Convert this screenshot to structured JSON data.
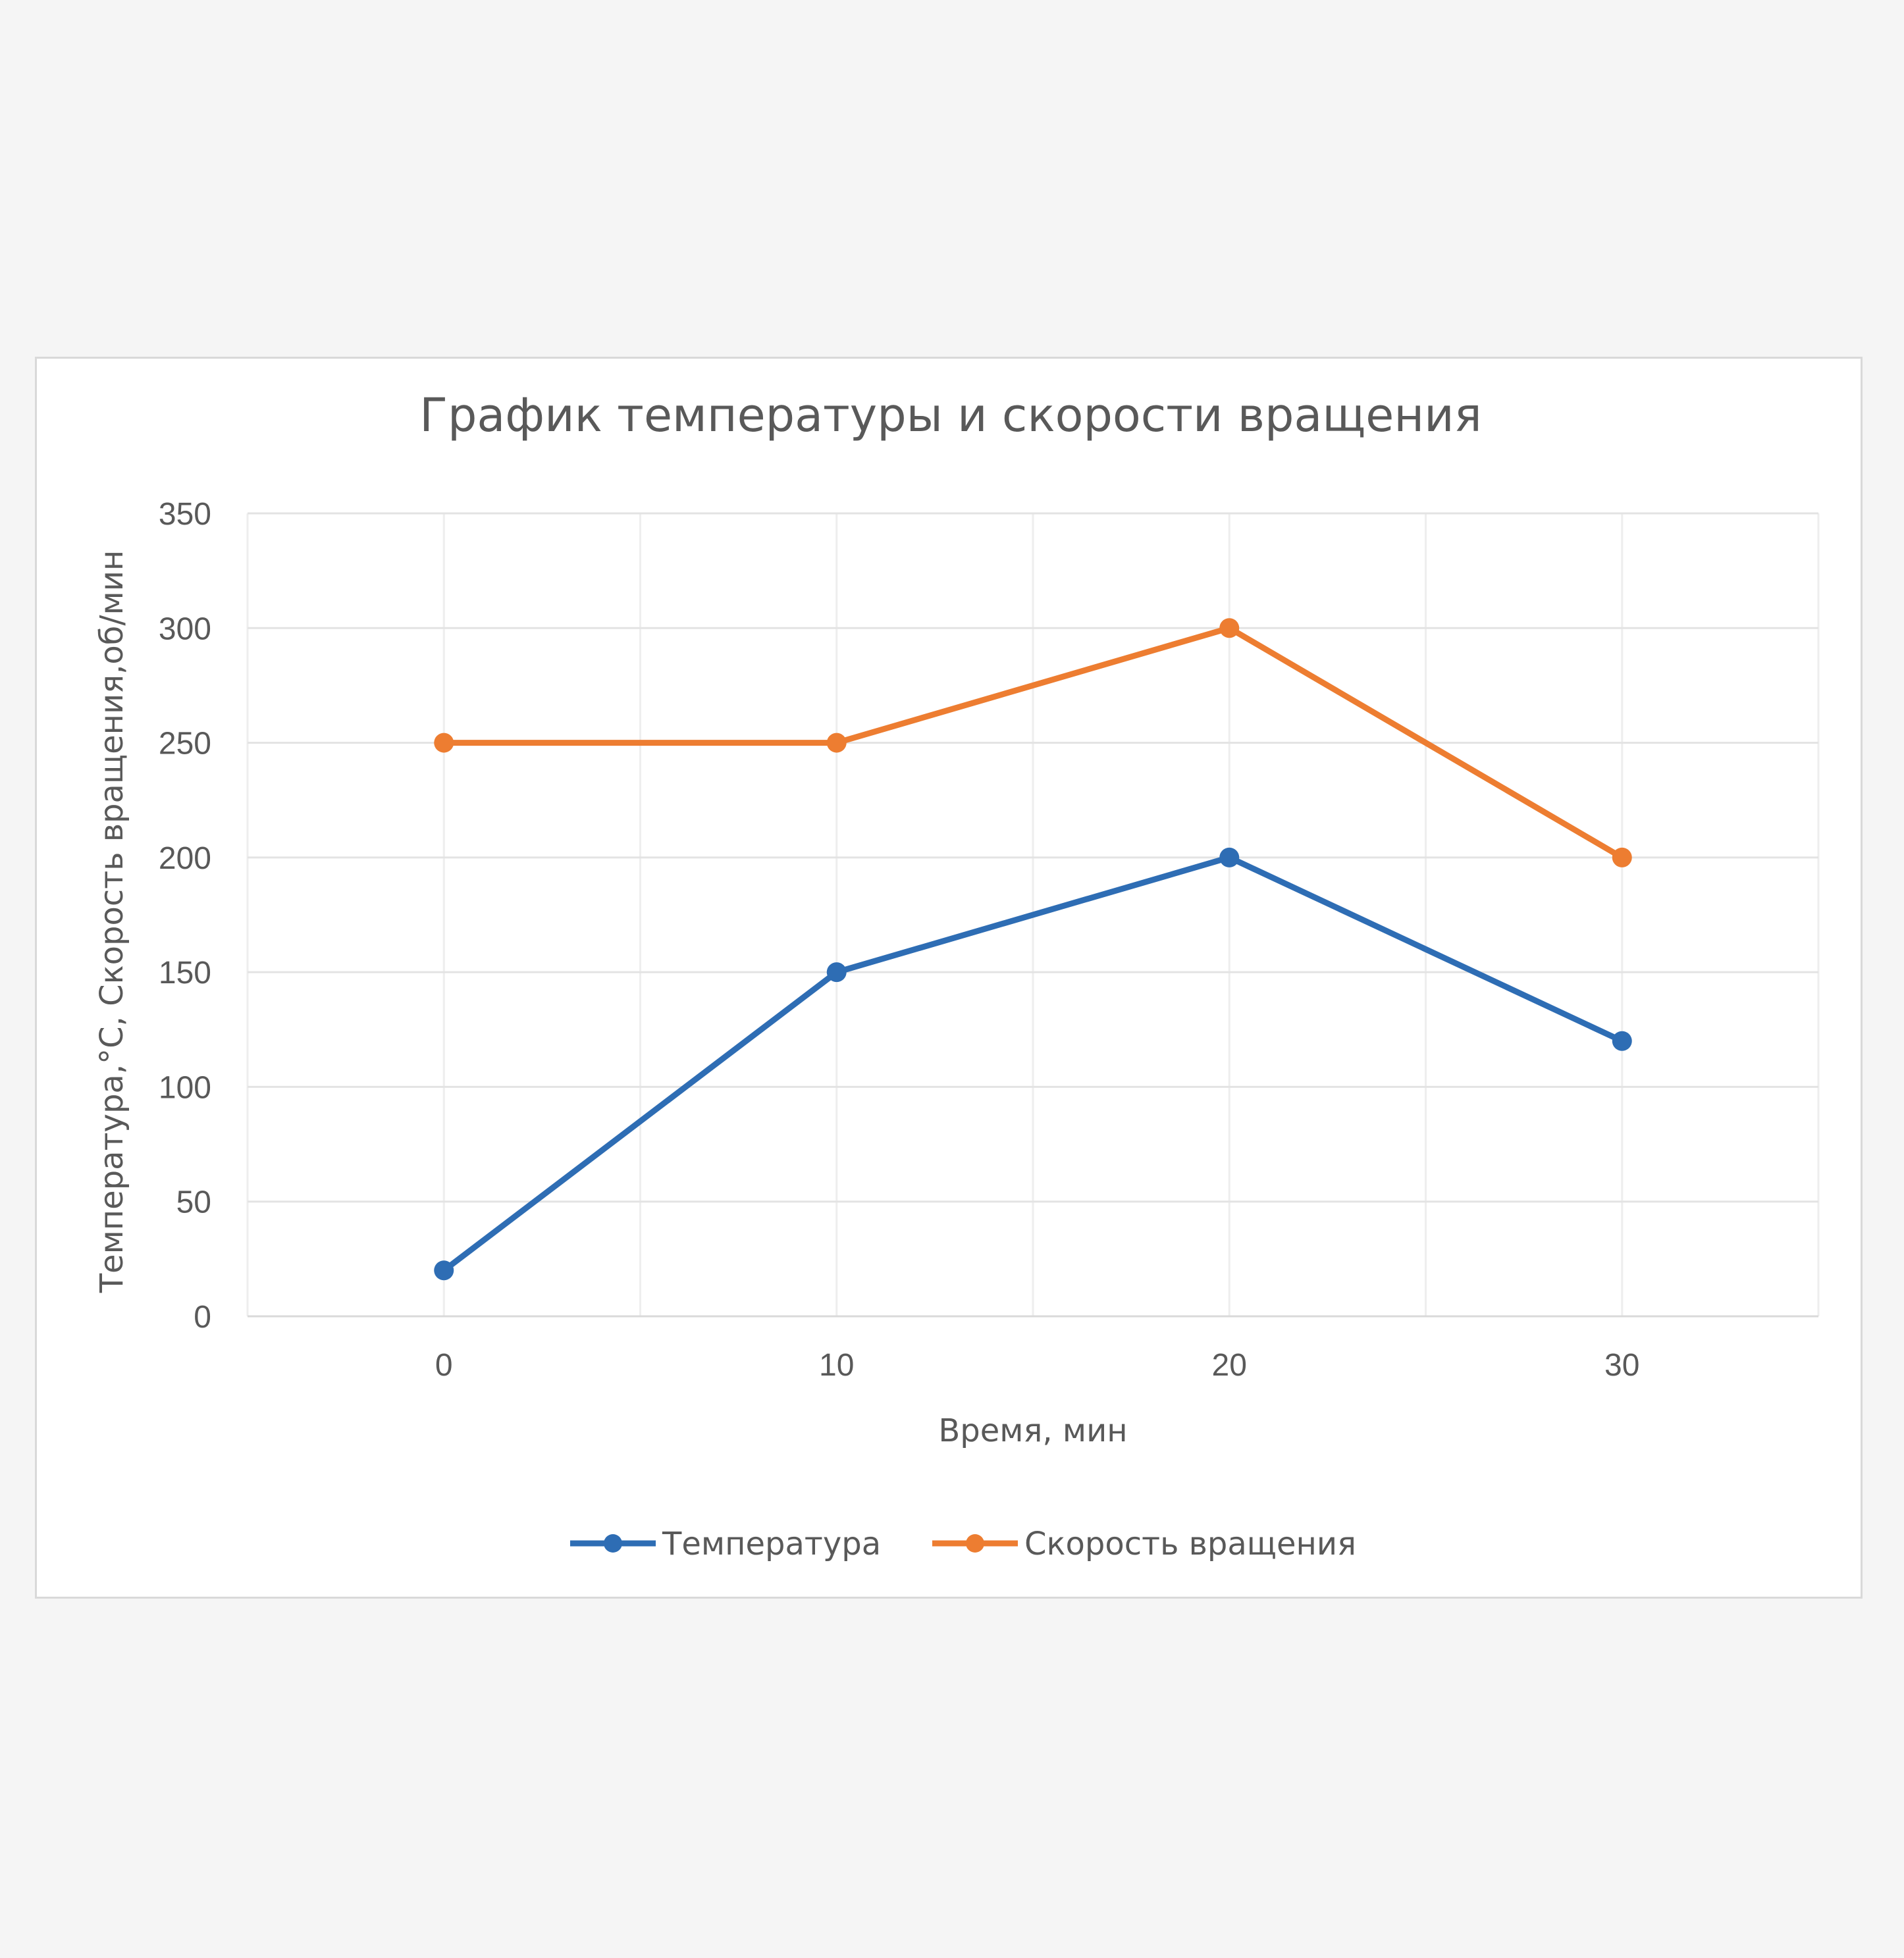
{
  "chart_data": {
    "type": "line",
    "title": "График температуры и скорости вращения",
    "xlabel": "Время,  мин",
    "ylabel": "Температура,°С,  Скорость вращения,об/мин",
    "x": [
      0,
      10,
      20,
      30
    ],
    "x_ticks": [
      "0",
      "10",
      "20",
      "30"
    ],
    "xlim": [
      -5,
      35
    ],
    "ylim": [
      0,
      350
    ],
    "y_ticks": [
      "0",
      "50",
      "100",
      "150",
      "200",
      "250",
      "300",
      "350"
    ],
    "grid": true,
    "legend_position": "bottom",
    "series": [
      {
        "name": "Температура",
        "values": [
          20,
          150,
          200,
          120
        ],
        "color": "#2e6db4"
      },
      {
        "name": "Скорость вращения",
        "values": [
          250,
          250,
          300,
          200
        ],
        "color": "#ed7d31"
      }
    ]
  }
}
